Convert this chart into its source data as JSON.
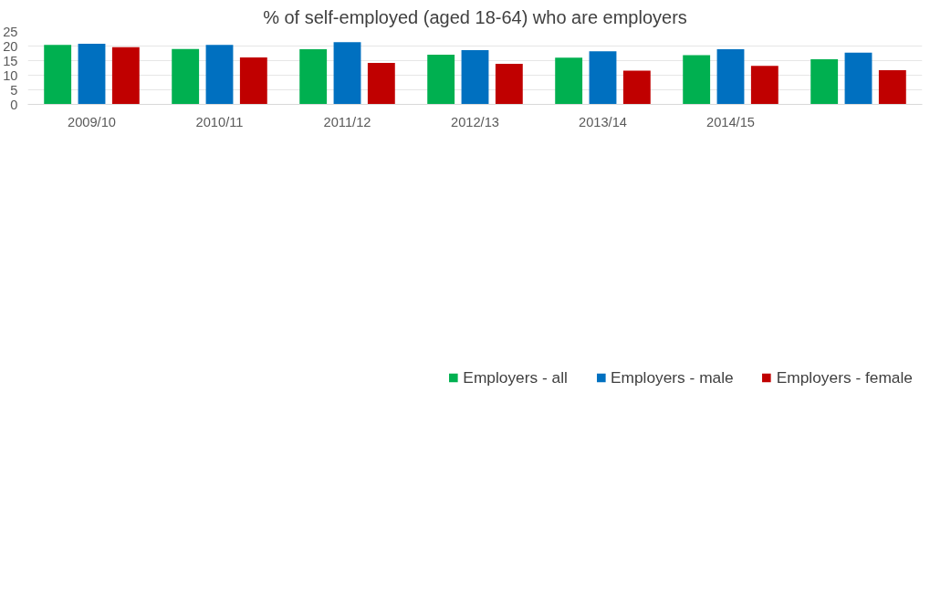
{
  "chart_data": {
    "type": "bar",
    "title": "% of self-employed (aged 18-64) who are employers",
    "categories": [
      "2009/10",
      "2010/11",
      "2011/12",
      "2012/13",
      "2013/14",
      "2014/15",
      null
    ],
    "series": [
      {
        "name": "Employers - all",
        "color": "#00b050",
        "values": [
          20.4,
          19.0,
          18.9,
          17.0,
          16.0,
          16.9,
          15.5
        ]
      },
      {
        "name": "Employers - male",
        "color": "#0070c0",
        "values": [
          20.8,
          20.4,
          21.3,
          18.6,
          18.2,
          18.9,
          17.7
        ]
      },
      {
        "name": "Employers - female",
        "color": "#c00000",
        "values": [
          19.6,
          16.1,
          14.2,
          13.9,
          11.6,
          13.2,
          11.7
        ]
      }
    ],
    "ylim": [
      0,
      25
    ],
    "yticks": [
      0,
      5,
      10,
      15,
      20,
      25
    ],
    "grid": "y",
    "legend": "bottom"
  }
}
